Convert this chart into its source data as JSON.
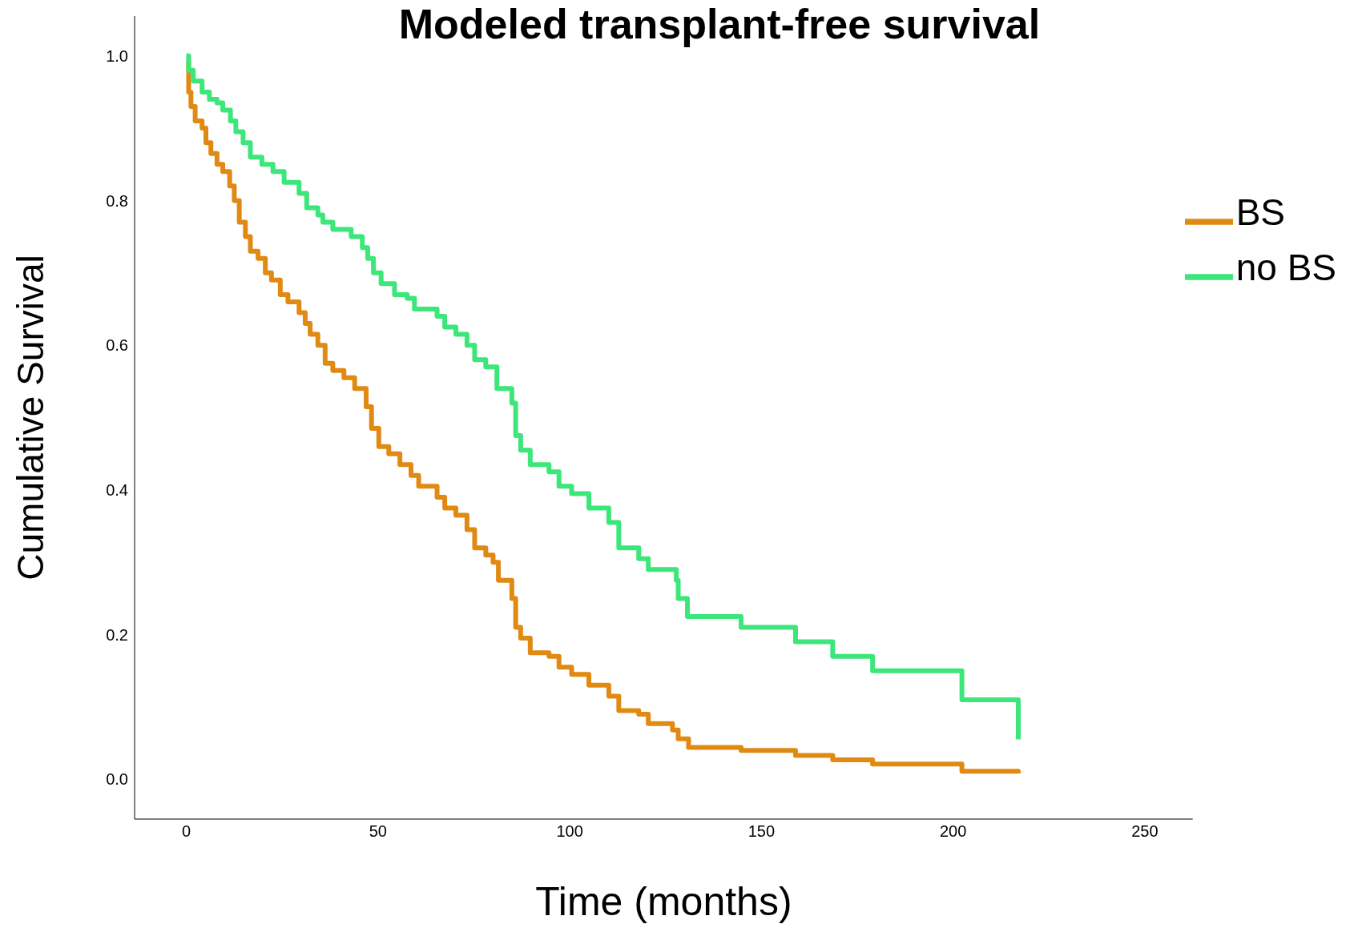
{
  "chart_data": {
    "type": "step",
    "title": "Modeled transplant-free survival",
    "xlabel": "Time (months)",
    "ylabel": "Cumulative Survival",
    "xlim": [
      -13.5,
      262.5
    ],
    "xticks": [
      0,
      50,
      100,
      150,
      200,
      250
    ],
    "ylim": [
      -0.055,
      1.055
    ],
    "yticks": [
      {
        "value": 0,
        "label": "0.0"
      },
      {
        "value": 0.2,
        "label": "0.2"
      },
      {
        "value": 0.4,
        "label": "0.4"
      },
      {
        "value": 0.6,
        "label": "0.6"
      },
      {
        "value": 0.8,
        "label": "0.8"
      },
      {
        "value": 1,
        "label": "1.0"
      }
    ],
    "grid": false,
    "legend": "right",
    "marker": "none",
    "line_style": "solid",
    "series": [
      {
        "name": "BS",
        "color": "#e08a14",
        "x": [
          0,
          0.6,
          1.2,
          2.3,
          4.1,
          5.1,
          6.4,
          8,
          9.5,
          11.3,
          12.5,
          13.8,
          15.4,
          16.7,
          18.7,
          20.6,
          22.2,
          24.5,
          26.5,
          29.4,
          31,
          32.3,
          34.3,
          36.2,
          38.2,
          41.1,
          43.9,
          46.9,
          48.3,
          50.2,
          52.8,
          55.7,
          58.6,
          60.6,
          65.4,
          67.4,
          70.3,
          73.2,
          75.2,
          78.1,
          80,
          81.4,
          84.9,
          85.9,
          87.2,
          89.7,
          94.6,
          97.2,
          100.5,
          105,
          110.2,
          112.8,
          118,
          120.5,
          126.8,
          128.3,
          131,
          144.7,
          158.9,
          168.6,
          179,
          202.3,
          217
        ],
        "values": [
          0.99,
          0.95,
          0.93,
          0.91,
          0.9,
          0.88,
          0.865,
          0.85,
          0.84,
          0.82,
          0.8,
          0.77,
          0.75,
          0.73,
          0.72,
          0.7,
          0.69,
          0.67,
          0.66,
          0.645,
          0.63,
          0.615,
          0.6,
          0.575,
          0.565,
          0.555,
          0.54,
          0.515,
          0.485,
          0.46,
          0.45,
          0.435,
          0.42,
          0.405,
          0.39,
          0.375,
          0.365,
          0.345,
          0.32,
          0.31,
          0.3,
          0.275,
          0.25,
          0.21,
          0.195,
          0.175,
          0.17,
          0.155,
          0.145,
          0.13,
          0.115,
          0.095,
          0.09,
          0.077,
          0.068,
          0.056,
          0.044,
          0.04,
          0.033,
          0.027,
          0.021,
          0.011,
          0.008
        ]
      },
      {
        "name": "no BS",
        "color": "#3de67a",
        "x": [
          0,
          0.6,
          1.8,
          4.1,
          6,
          8,
          9.5,
          11.5,
          12.9,
          14.8,
          16.7,
          19.7,
          22.6,
          25.5,
          29.4,
          31.4,
          34.3,
          35.6,
          38.2,
          43,
          45.9,
          47.3,
          48.8,
          50.8,
          54.3,
          57.6,
          59.5,
          65.4,
          67.4,
          70.3,
          73.2,
          75.2,
          78.1,
          81,
          84.9,
          85.9,
          87.2,
          89.7,
          94.6,
          97.2,
          100.5,
          105,
          110.2,
          112.8,
          118,
          120.5,
          127.8,
          128.3,
          130.7,
          144.7,
          158.9,
          168.6,
          179,
          202.3,
          217
        ],
        "values": [
          1.0,
          0.98,
          0.965,
          0.95,
          0.94,
          0.935,
          0.925,
          0.91,
          0.895,
          0.88,
          0.86,
          0.85,
          0.84,
          0.825,
          0.81,
          0.79,
          0.78,
          0.77,
          0.76,
          0.75,
          0.735,
          0.72,
          0.7,
          0.685,
          0.67,
          0.665,
          0.65,
          0.64,
          0.625,
          0.615,
          0.6,
          0.58,
          0.57,
          0.54,
          0.52,
          0.475,
          0.455,
          0.435,
          0.425,
          0.405,
          0.395,
          0.375,
          0.355,
          0.32,
          0.305,
          0.29,
          0.275,
          0.25,
          0.225,
          0.21,
          0.19,
          0.17,
          0.15,
          0.11,
          0.055
        ]
      }
    ]
  }
}
